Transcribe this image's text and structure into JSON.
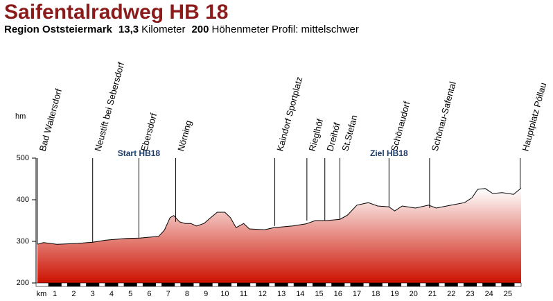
{
  "chart_data": {
    "type": "area",
    "title": "Saifentalradweg HB 18",
    "subtitle": [
      {
        "text": "Region Oststeiermark",
        "bold": true
      },
      {
        "text": "13,3",
        "bold": true
      },
      {
        "text": "Kilometer",
        "bold": false
      },
      {
        "text": "200",
        "bold": true
      },
      {
        "text": "Höhenmeter",
        "bold": false
      },
      {
        "text": "Profil: mittelschwer",
        "bold": false
      }
    ],
    "y_label": "hm",
    "x_label": "km",
    "x": [
      0.07,
      0.4,
      1.1,
      2.2,
      3.0,
      3.7,
      4.8,
      5.5,
      6.5,
      6.8,
      7.1,
      7.3,
      7.6,
      7.9,
      8.2,
      8.5,
      8.9,
      9.2,
      9.6,
      10.0,
      10.3,
      10.6,
      11.0,
      11.3,
      12.1,
      12.6,
      13.6,
      14.3,
      14.8,
      15.4,
      16.1,
      16.5,
      17.0,
      17.6,
      18.1,
      18.7,
      19.0,
      19.4,
      20.1,
      20.8,
      21.2,
      22.0,
      22.7,
      23.1,
      23.4,
      23.8,
      24.2,
      24.7,
      25.3,
      25.7
    ],
    "values": [
      293,
      297,
      293,
      295,
      298,
      303,
      307,
      308,
      312,
      327,
      357,
      362,
      347,
      343,
      343,
      337,
      343,
      355,
      370,
      370,
      357,
      333,
      343,
      330,
      328,
      333,
      337,
      342,
      350,
      350,
      353,
      363,
      387,
      393,
      385,
      383,
      373,
      385,
      380,
      387,
      380,
      387,
      393,
      405,
      425,
      427,
      415,
      417,
      413,
      428
    ],
    "color": "#cc1100",
    "xlim": [
      0,
      25.7
    ],
    "ylim": [
      200,
      500
    ],
    "yticks": [
      200,
      300,
      400,
      500
    ],
    "xticks": [
      1,
      2,
      3,
      4,
      5,
      6,
      7,
      8,
      9,
      10,
      11,
      12,
      13,
      14,
      15,
      16,
      17,
      18,
      19,
      20,
      21,
      22,
      23,
      24,
      25
    ],
    "waypoints": [
      {
        "name": "Bad Waltersdorf",
        "km": 0.07
      },
      {
        "name": "Neustift bei Sebersdorf",
        "km": 3.0
      },
      {
        "name": "Ebersdorf",
        "km": 5.45
      },
      {
        "name": "Nörning",
        "km": 7.4
      },
      {
        "name": "Kaindorf Sportplatz",
        "km": 12.65
      },
      {
        "name": "Rieglhöf",
        "km": 14.35
      },
      {
        "name": "Dreihöf",
        "km": 15.3
      },
      {
        "name": "St.Stefan",
        "km": 16.1
      },
      {
        "name": "Schönaudorf",
        "km": 18.7
      },
      {
        "name": "Schönau-Safental",
        "km": 20.85
      },
      {
        "name": "Hauptplatz Pöllau",
        "km": 25.65
      }
    ],
    "annotations": [
      {
        "text": "Start HB18",
        "km": 5.45
      },
      {
        "text": "Ziel HB18",
        "km": 18.7
      }
    ]
  }
}
